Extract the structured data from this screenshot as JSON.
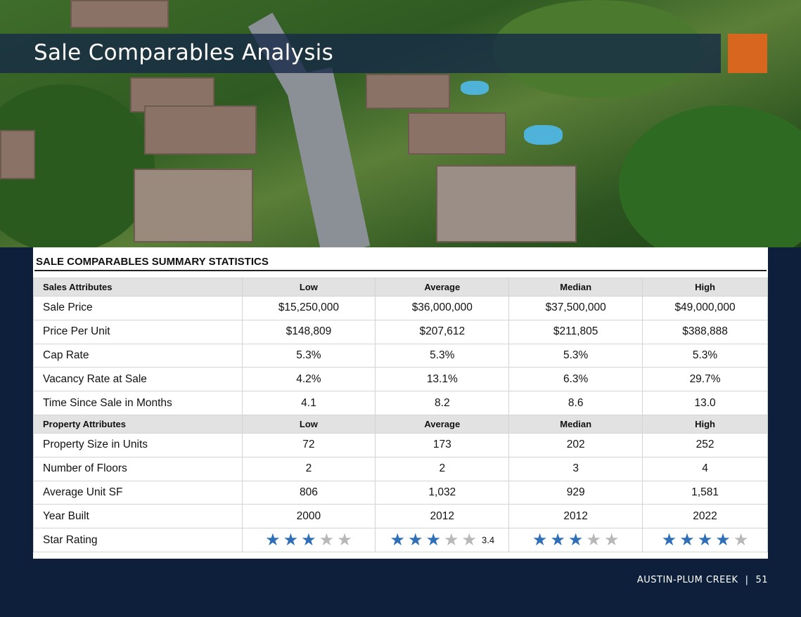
{
  "page": {
    "title": "Sale Comparables Analysis"
  },
  "table": {
    "heading": "SALE COMPARABLES SUMMARY STATISTICS",
    "sales_header": [
      "Sales Attributes",
      "Low",
      "Average",
      "Median",
      "High"
    ],
    "sales_rows": [
      [
        "Sale Price",
        "$15,250,000",
        "$36,000,000",
        "$37,500,000",
        "$49,000,000"
      ],
      [
        "Price Per Unit",
        "$148,809",
        "$207,612",
        "$211,805",
        "$388,888"
      ],
      [
        "Cap Rate",
        "5.3%",
        "5.3%",
        "5.3%",
        "5.3%"
      ],
      [
        "Vacancy Rate at Sale",
        "4.2%",
        "13.1%",
        "6.3%",
        "29.7%"
      ],
      [
        "Time Since Sale in Months",
        "4.1",
        "8.2",
        "8.6",
        "13.0"
      ]
    ],
    "property_header": [
      "Property Attributes",
      "Low",
      "Average",
      "Median",
      "High"
    ],
    "property_rows": [
      [
        "Property Size in Units",
        "72",
        "173",
        "202",
        "252"
      ],
      [
        "Number of Floors",
        "2",
        "2",
        "3",
        "4"
      ],
      [
        "Average Unit SF",
        "806",
        "1,032",
        "929",
        "1,581"
      ],
      [
        "Year Built",
        "2000",
        "2012",
        "2012",
        "2022"
      ]
    ],
    "star_row": {
      "label": "Star Rating",
      "max": 5,
      "ratings": [
        {
          "filled": 3,
          "label": ""
        },
        {
          "filled": 3,
          "label": "3.4"
        },
        {
          "filled": 3,
          "label": ""
        },
        {
          "filled": 4,
          "label": ""
        }
      ]
    }
  },
  "footer": {
    "property": "AUSTIN-PLUM CREEK",
    "page_number": "51"
  },
  "colors": {
    "navy": "#0d1f3a",
    "accent": "#d9661f",
    "star_on": "#2e6fb7",
    "star_off": "#b8b8b8"
  },
  "icons": {
    "star": "star-icon"
  }
}
